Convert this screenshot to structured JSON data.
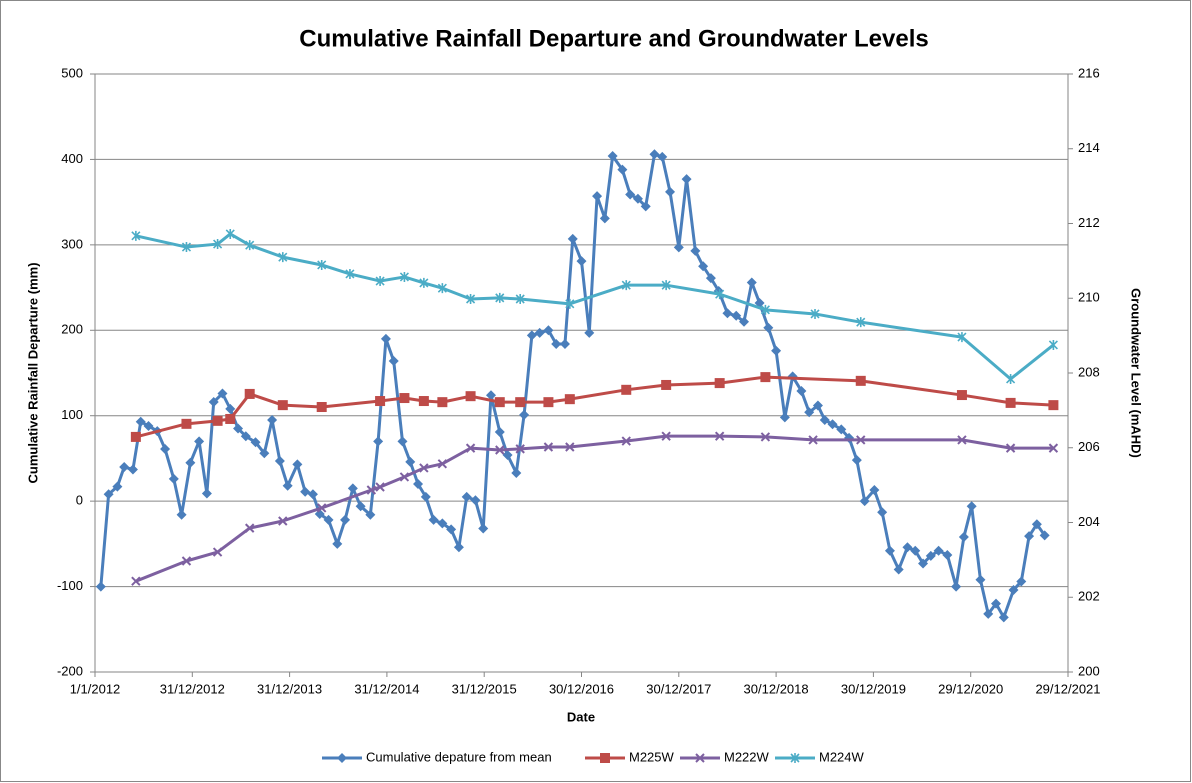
{
  "chart_data": {
    "type": "line",
    "title": "Cumulative Rainfall Departure and Groundwater Levels",
    "xlabel": "Date",
    "ylabel": "Cumulative Rainfall Departure (mm)",
    "y2label": "Groundwater Level (mAHD)",
    "xlim": [
      2012,
      2022
    ],
    "xticks": [
      {
        "value": 2012,
        "label": "1/1/2012"
      },
      {
        "value": 2013,
        "label": "31/12/2012"
      },
      {
        "value": 2014,
        "label": "31/12/2013"
      },
      {
        "value": 2015,
        "label": "31/12/2014"
      },
      {
        "value": 2016,
        "label": "31/12/2015"
      },
      {
        "value": 2017,
        "label": "30/12/2016"
      },
      {
        "value": 2018,
        "label": "30/12/2017"
      },
      {
        "value": 2019,
        "label": "30/12/2018"
      },
      {
        "value": 2020,
        "label": "30/12/2019"
      },
      {
        "value": 2021,
        "label": "29/12/2020"
      },
      {
        "value": 2022,
        "label": "29/12/2021"
      }
    ],
    "ylim": [
      -200,
      500
    ],
    "yticks": [
      -200,
      -100,
      0,
      100,
      200,
      300,
      400,
      500
    ],
    "y2lim": [
      200,
      216
    ],
    "y2ticks": [
      200,
      202,
      204,
      206,
      208,
      210,
      212,
      214,
      216
    ],
    "grid": true,
    "legend": "bottom",
    "series": [
      {
        "name": "Cumulative depature from mean",
        "color": "#4a7ebb",
        "marker": "diamond",
        "x": [
          2012.06,
          2012.14,
          2012.23,
          2012.3,
          2012.39,
          2012.47,
          2012.55,
          2012.64,
          2012.72,
          2012.81,
          2012.89,
          2012.98,
          2013.07,
          2013.15,
          2013.22,
          2013.31,
          2013.39,
          2013.47,
          2013.55,
          2013.65,
          2013.74,
          2013.82,
          2013.9,
          2013.98,
          2014.08,
          2014.16,
          2014.24,
          2014.31,
          2014.4,
          2014.49,
          2014.57,
          2014.65,
          2014.73,
          2014.83,
          2014.91,
          2014.99,
          2015.07,
          2015.16,
          2015.24,
          2015.32,
          2015.4,
          2015.48,
          2015.57,
          2015.66,
          2015.74,
          2015.82,
          2015.91,
          2015.99,
          2016.07,
          2016.16,
          2016.24,
          2016.33,
          2016.41,
          2016.49,
          2016.57,
          2016.66,
          2016.74,
          2016.83,
          2016.91,
          2017.0,
          2017.08,
          2017.16,
          2017.24,
          2017.32,
          2017.42,
          2017.5,
          2017.58,
          2017.66,
          2017.75,
          2017.83,
          2017.91,
          2018.0,
          2018.08,
          2018.17,
          2018.25,
          2018.33,
          2018.41,
          2018.5,
          2018.59,
          2018.67,
          2018.75,
          2018.83,
          2018.92,
          2019.0,
          2019.09,
          2019.17,
          2019.26,
          2019.34,
          2019.43,
          2019.5,
          2019.58,
          2019.67,
          2019.75,
          2019.83,
          2019.91,
          2020.01,
          2020.09,
          2020.17,
          2020.26,
          2020.35,
          2020.43,
          2020.51,
          2020.59,
          2020.67,
          2020.76,
          2020.85,
          2020.93,
          2021.01,
          2021.1,
          2021.18,
          2021.26,
          2021.34,
          2021.44,
          2021.52,
          2021.6,
          2021.68,
          2021.76
        ],
        "values": [
          -100,
          8,
          17,
          40,
          37,
          93,
          88,
          82,
          61,
          26,
          -16,
          45,
          70,
          9,
          116,
          126,
          108,
          85,
          76,
          69,
          56,
          95,
          47,
          18,
          43,
          11,
          8,
          -15,
          -22,
          -50,
          -22,
          15,
          -6,
          -16,
          70,
          190,
          164,
          70,
          46,
          20,
          5,
          -22,
          -26,
          -33,
          -54,
          5,
          1,
          -32,
          124,
          81,
          54,
          33,
          101,
          194,
          197,
          200,
          184,
          184,
          307,
          281,
          197,
          357,
          331,
          404,
          388,
          359,
          354,
          345,
          406,
          403,
          362,
          297,
          377,
          293,
          275,
          261,
          246,
          220,
          217,
          210,
          256,
          232,
          203,
          176,
          98,
          146,
          129,
          104,
          112,
          95,
          90,
          84,
          74,
          48,
          0,
          13,
          -13,
          -58,
          -80,
          -54,
          -58,
          -73,
          -64,
          -58,
          -63,
          -100,
          -42,
          -6,
          -92,
          -132,
          -120,
          -136,
          -104,
          -94,
          -41,
          -27,
          -40
        ]
      },
      {
        "name": "M225W",
        "color": "#be4b48",
        "marker": "square",
        "axis": "y2",
        "x": [
          2012.42,
          2012.94,
          2013.26,
          2013.39,
          2013.59,
          2013.93,
          2014.33,
          2014.93,
          2015.18,
          2015.38,
          2015.57,
          2015.86,
          2016.16,
          2016.37,
          2016.66,
          2016.88,
          2017.46,
          2017.87,
          2018.42,
          2018.89,
          2019.87,
          2020.91,
          2021.41,
          2021.85
        ],
        "values": [
          206.29,
          206.64,
          206.72,
          206.77,
          207.44,
          207.14,
          207.09,
          207.25,
          207.33,
          207.25,
          207.22,
          207.38,
          207.22,
          207.22,
          207.22,
          207.3,
          207.55,
          207.68,
          207.73,
          207.89,
          207.79,
          207.41,
          207.2,
          207.14
        ]
      },
      {
        "name": "M222W",
        "color": "#7d60a0",
        "marker": "x",
        "axis": "y2",
        "x": [
          2012.42,
          2012.94,
          2013.26,
          2013.59,
          2013.93,
          2014.33,
          2014.84,
          2014.93,
          2015.18,
          2015.38,
          2015.57,
          2015.86,
          2016.16,
          2016.37,
          2016.66,
          2016.88,
          2017.46,
          2017.87,
          2018.42,
          2018.89,
          2019.38,
          2019.87,
          2020.91,
          2021.41,
          2021.85
        ],
        "values": [
          202.43,
          202.97,
          203.21,
          203.85,
          204.04,
          204.39,
          204.87,
          204.95,
          205.22,
          205.46,
          205.57,
          205.99,
          205.94,
          205.97,
          206.02,
          206.02,
          206.18,
          206.31,
          206.31,
          206.29,
          206.21,
          206.21,
          206.21,
          205.99,
          205.99
        ]
      },
      {
        "name": "M224W",
        "color": "#4bacc6",
        "marker": "star",
        "axis": "y2",
        "x": [
          2012.42,
          2012.94,
          2013.26,
          2013.39,
          2013.59,
          2013.93,
          2014.33,
          2014.62,
          2014.93,
          2015.18,
          2015.38,
          2015.57,
          2015.86,
          2016.16,
          2016.37,
          2016.88,
          2017.46,
          2017.87,
          2018.42,
          2018.89,
          2019.4,
          2019.87,
          2020.91,
          2021.41,
          2021.85
        ],
        "values": [
          211.67,
          211.37,
          211.45,
          211.72,
          211.42,
          211.1,
          210.89,
          210.65,
          210.46,
          210.57,
          210.41,
          210.27,
          209.98,
          210.01,
          209.98,
          209.85,
          210.35,
          210.35,
          210.11,
          209.69,
          209.58,
          209.36,
          208.96,
          207.84,
          208.75
        ]
      }
    ]
  }
}
